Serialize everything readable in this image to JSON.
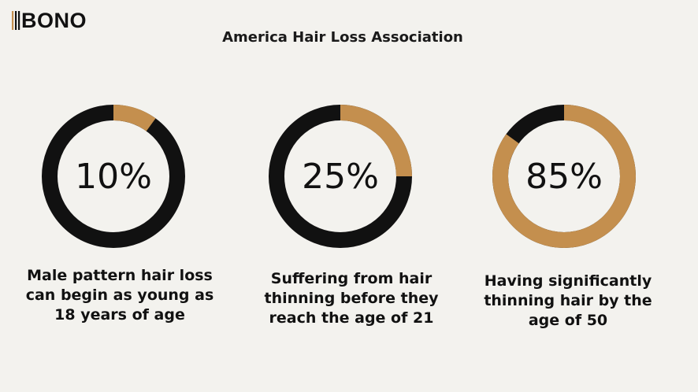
{
  "brand": {
    "logo_text": "BONO",
    "logo_color": "#111111",
    "accent_color": "#c48f4e"
  },
  "title": "America Hair Loss Association",
  "colors": {
    "background": "#f3f2ee",
    "filled": "#c48f4e",
    "remainder": "#111111"
  },
  "stats": [
    {
      "value_label": "10%",
      "caption_lines": [
        "Male pattern hair loss",
        "can begin as young as",
        "18 years of age"
      ]
    },
    {
      "value_label": "25%",
      "caption_lines": [
        "Suffering from hair",
        "thinning before they",
        "reach the age of 21"
      ]
    },
    {
      "value_label": "85%",
      "caption_lines": [
        "Having significantly",
        "thinning hair by the",
        "age of 50"
      ]
    }
  ],
  "chart_data": {
    "type": "pie",
    "variant": "donut",
    "title": "America Hair Loss Association",
    "series": [
      {
        "label": "Male pattern hair loss can begin as young as 18 years of age",
        "value": 10
      },
      {
        "label": "Suffering from hair thinning before they reach the age of 21",
        "value": 25
      },
      {
        "label": "Having significantly thinning hair by the age of 50",
        "value": 85
      }
    ],
    "unit": "%",
    "max": 100
  }
}
